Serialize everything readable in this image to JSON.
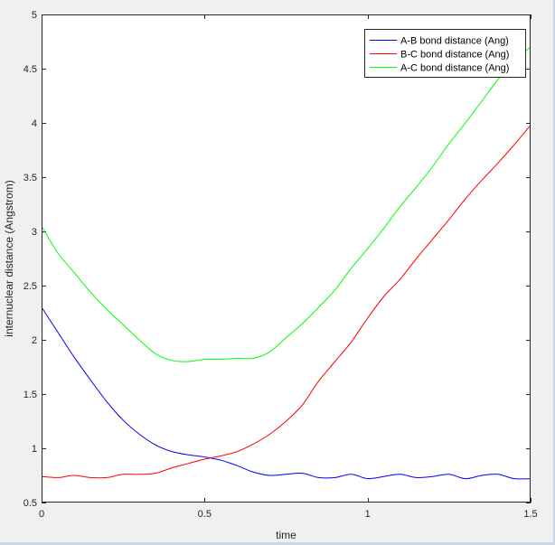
{
  "chart_data": {
    "type": "line",
    "title": "",
    "xlabel": "time",
    "ylabel": "internuclear distance (Angstrom)",
    "xlim": [
      0,
      1.5
    ],
    "ylim": [
      0.5,
      5
    ],
    "xticks": [
      0,
      0.5,
      1,
      1.5
    ],
    "xtick_labels": [
      "0",
      "0.5",
      "1",
      "1.5"
    ],
    "yticks": [
      0.5,
      1,
      1.5,
      2,
      2.5,
      3,
      3.5,
      4,
      4.5,
      5
    ],
    "ytick_labels": [
      "0.5",
      "1",
      "1.5",
      "2",
      "2.5",
      "3",
      "3.5",
      "4",
      "4.5",
      "5"
    ],
    "grid": false,
    "legend_position": "top-right",
    "series": [
      {
        "name": "A-B bond distance (Ang)",
        "color": "#0000ff",
        "x": [
          0,
          0.05,
          0.1,
          0.15,
          0.2,
          0.25,
          0.3,
          0.35,
          0.4,
          0.45,
          0.5,
          0.55,
          0.6,
          0.65,
          0.7,
          0.75,
          0.8,
          0.85,
          0.9,
          0.95,
          1.0,
          1.05,
          1.1,
          1.15,
          1.2,
          1.25,
          1.3,
          1.35,
          1.4,
          1.45,
          1.5
        ],
        "y": [
          2.3,
          2.07,
          1.84,
          1.63,
          1.43,
          1.26,
          1.13,
          1.03,
          0.97,
          0.94,
          0.92,
          0.89,
          0.84,
          0.78,
          0.75,
          0.76,
          0.77,
          0.73,
          0.73,
          0.76,
          0.72,
          0.74,
          0.76,
          0.73,
          0.74,
          0.76,
          0.72,
          0.75,
          0.76,
          0.72,
          0.72
        ]
      },
      {
        "name": "B-C bond distance (Ang)",
        "color": "#ff0000",
        "x": [
          0,
          0.05,
          0.1,
          0.15,
          0.2,
          0.25,
          0.3,
          0.35,
          0.4,
          0.45,
          0.5,
          0.55,
          0.6,
          0.65,
          0.7,
          0.75,
          0.8,
          0.85,
          0.9,
          0.95,
          1.0,
          1.05,
          1.1,
          1.15,
          1.2,
          1.25,
          1.3,
          1.35,
          1.4,
          1.45,
          1.5
        ],
        "y": [
          0.74,
          0.73,
          0.75,
          0.73,
          0.73,
          0.76,
          0.76,
          0.77,
          0.82,
          0.86,
          0.9,
          0.93,
          0.97,
          1.04,
          1.13,
          1.25,
          1.4,
          1.62,
          1.8,
          1.98,
          2.2,
          2.4,
          2.56,
          2.75,
          2.93,
          3.11,
          3.3,
          3.47,
          3.63,
          3.8,
          3.98
        ]
      },
      {
        "name": "A-C bond distance (Ang)",
        "color": "#00ff00",
        "x": [
          0,
          0.05,
          0.1,
          0.15,
          0.2,
          0.25,
          0.3,
          0.35,
          0.4,
          0.45,
          0.5,
          0.55,
          0.6,
          0.65,
          0.7,
          0.75,
          0.8,
          0.85,
          0.9,
          0.95,
          1.0,
          1.05,
          1.1,
          1.15,
          1.2,
          1.25,
          1.3,
          1.35,
          1.4,
          1.45,
          1.5
        ],
        "y": [
          3.05,
          2.8,
          2.62,
          2.44,
          2.28,
          2.14,
          2.0,
          1.87,
          1.81,
          1.8,
          1.82,
          1.82,
          1.83,
          1.83,
          1.89,
          2.02,
          2.15,
          2.3,
          2.46,
          2.66,
          2.84,
          3.03,
          3.23,
          3.41,
          3.6,
          3.81,
          4.0,
          4.2,
          4.4,
          4.57,
          4.7
        ]
      }
    ]
  }
}
